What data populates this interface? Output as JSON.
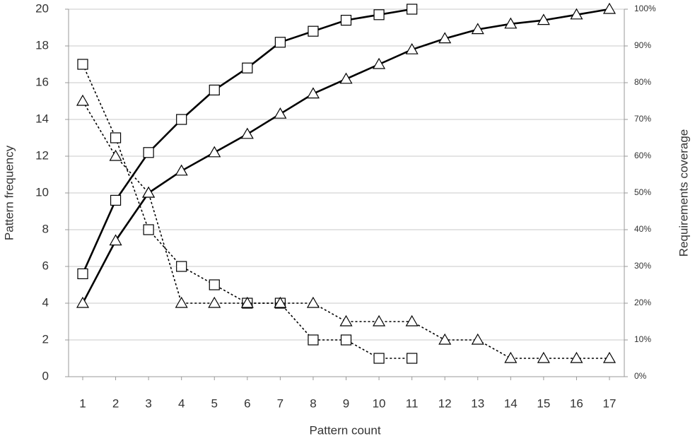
{
  "chart_data": {
    "type": "line",
    "x_label": "Pattern count",
    "y_label": "Pattern frequency",
    "y2_label": "Requirements coverage",
    "categories": [
      1,
      2,
      3,
      4,
      5,
      6,
      7,
      8,
      9,
      10,
      11,
      12,
      13,
      14,
      15,
      16,
      17
    ],
    "ylim": [
      0,
      20
    ],
    "yticks": [
      0,
      2,
      4,
      6,
      8,
      10,
      12,
      14,
      16,
      18,
      20
    ],
    "y2lim": [
      0,
      100
    ],
    "y2ticks": [
      {
        "value": 0,
        "label": "0%"
      },
      {
        "value": 10,
        "label": "10%"
      },
      {
        "value": 20,
        "label": "20%"
      },
      {
        "value": 30,
        "label": "30%"
      },
      {
        "value": 40,
        "label": "40%"
      },
      {
        "value": 50,
        "label": "50%"
      },
      {
        "value": 60,
        "label": "60%"
      },
      {
        "value": 70,
        "label": "70%"
      },
      {
        "value": 80,
        "label": "80%"
      },
      {
        "value": 90,
        "label": "90%"
      },
      {
        "value": 100,
        "label": "100%"
      }
    ],
    "grid": true,
    "series": [
      {
        "color": "#000000",
        "style": "dashed",
        "marker": "square",
        "values": [
          17,
          13,
          8,
          6,
          5,
          4,
          4,
          2,
          2,
          1,
          1,
          null,
          null,
          null,
          null,
          null,
          null
        ]
      },
      {
        "color": "#000000",
        "style": "dashed",
        "marker": "triangle",
        "values": [
          15,
          12,
          10,
          4,
          4,
          4,
          4,
          4,
          3,
          3,
          3,
          2,
          2,
          1,
          1,
          1,
          1
        ]
      },
      {
        "color": "#000000",
        "style": "solid",
        "marker": "square",
        "axis": "y2",
        "values": [
          28,
          48,
          61,
          70,
          78,
          84,
          91,
          94,
          97,
          98.5,
          100,
          null,
          null,
          null,
          null,
          null,
          null
        ]
      },
      {
        "color": "#000000",
        "style": "solid",
        "marker": "triangle",
        "axis": "y2",
        "values": [
          20,
          37,
          50,
          56,
          61,
          66,
          71.5,
          77,
          81,
          85,
          89,
          92,
          94.5,
          96,
          97,
          98.5,
          100
        ]
      }
    ]
  }
}
